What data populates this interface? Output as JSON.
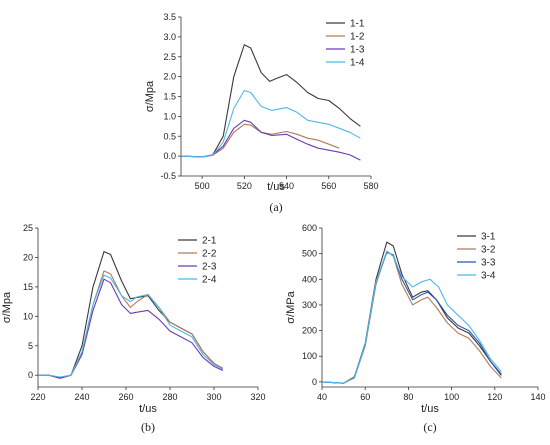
{
  "chart_data": [
    {
      "type": "line",
      "caption": "(a)",
      "xlabel": "t/us",
      "ylabel": "σ/Mpa",
      "xlim": [
        490,
        580
      ],
      "ylim": [
        -0.5,
        3.5
      ],
      "xticks": [
        500,
        520,
        540,
        560,
        580
      ],
      "yticks": [
        -0.5,
        0.0,
        0.5,
        1.0,
        1.5,
        2.0,
        2.5,
        3.0,
        3.5
      ],
      "ytick_decimals": 1,
      "legend_position": "top-right",
      "series": [
        {
          "name": "1-1",
          "color": "#3a3a3a",
          "points": [
            [
              490,
              0
            ],
            [
              500,
              -0.02
            ],
            [
              505,
              0.03
            ],
            [
              510,
              0.5
            ],
            [
              515,
              2.0
            ],
            [
              520,
              2.8
            ],
            [
              523,
              2.72
            ],
            [
              528,
              2.1
            ],
            [
              532,
              1.88
            ],
            [
              535,
              1.95
            ],
            [
              540,
              2.05
            ],
            [
              545,
              1.85
            ],
            [
              550,
              1.6
            ],
            [
              555,
              1.45
            ],
            [
              560,
              1.4
            ],
            [
              565,
              1.2
            ],
            [
              570,
              0.95
            ],
            [
              575,
              0.75
            ]
          ]
        },
        {
          "name": "1-2",
          "color": "#b07a5a",
          "points": [
            [
              490,
              0
            ],
            [
              500,
              -0.02
            ],
            [
              505,
              0.02
            ],
            [
              510,
              0.2
            ],
            [
              515,
              0.6
            ],
            [
              520,
              0.8
            ],
            [
              523,
              0.78
            ],
            [
              528,
              0.6
            ],
            [
              533,
              0.55
            ],
            [
              540,
              0.62
            ],
            [
              545,
              0.55
            ],
            [
              550,
              0.45
            ],
            [
              555,
              0.4
            ],
            [
              560,
              0.3
            ],
            [
              565,
              0.2
            ]
          ]
        },
        {
          "name": "1-3",
          "color": "#6a3cb5",
          "points": [
            [
              490,
              0
            ],
            [
              500,
              -0.02
            ],
            [
              505,
              0.03
            ],
            [
              510,
              0.25
            ],
            [
              515,
              0.7
            ],
            [
              520,
              0.9
            ],
            [
              523,
              0.85
            ],
            [
              528,
              0.6
            ],
            [
              533,
              0.52
            ],
            [
              540,
              0.55
            ],
            [
              545,
              0.42
            ],
            [
              550,
              0.3
            ],
            [
              555,
              0.2
            ],
            [
              560,
              0.15
            ],
            [
              565,
              0.1
            ],
            [
              570,
              0.03
            ],
            [
              575,
              -0.1
            ]
          ]
        },
        {
          "name": "1-4",
          "color": "#4db8e8",
          "points": [
            [
              490,
              0
            ],
            [
              500,
              -0.02
            ],
            [
              505,
              0.02
            ],
            [
              510,
              0.35
            ],
            [
              515,
              1.2
            ],
            [
              520,
              1.65
            ],
            [
              523,
              1.6
            ],
            [
              528,
              1.25
            ],
            [
              533,
              1.15
            ],
            [
              540,
              1.22
            ],
            [
              545,
              1.1
            ],
            [
              550,
              0.9
            ],
            [
              555,
              0.85
            ],
            [
              560,
              0.8
            ],
            [
              565,
              0.7
            ],
            [
              570,
              0.6
            ],
            [
              575,
              0.45
            ]
          ]
        }
      ]
    },
    {
      "type": "line",
      "caption": "(b)",
      "xlabel": "t/us",
      "ylabel": "σ/Mpa",
      "xlim": [
        220,
        320
      ],
      "ylim": [
        -2,
        25
      ],
      "xticks": [
        220,
        240,
        260,
        280,
        300,
        320
      ],
      "yticks": [
        0,
        5,
        10,
        15,
        20,
        25
      ],
      "ytick_decimals": 0,
      "legend_position": "top-right",
      "series": [
        {
          "name": "2-1",
          "color": "#3a3a3a",
          "points": [
            [
              220,
              0
            ],
            [
              225,
              0
            ],
            [
              230,
              -0.5
            ],
            [
              235,
              0
            ],
            [
              240,
              5
            ],
            [
              245,
              15
            ],
            [
              250,
              21
            ],
            [
              253,
              20.5
            ],
            [
              258,
              16
            ],
            [
              262,
              13
            ],
            [
              265,
              13.2
            ],
            [
              270,
              13.5
            ],
            [
              275,
              11
            ],
            [
              280,
              9
            ],
            [
              285,
              8
            ],
            [
              290,
              7
            ],
            [
              295,
              4
            ],
            [
              300,
              2
            ],
            [
              304,
              1
            ]
          ]
        },
        {
          "name": "2-2",
          "color": "#b07a5a",
          "points": [
            [
              220,
              0
            ],
            [
              225,
              0
            ],
            [
              230,
              -0.4
            ],
            [
              235,
              0
            ],
            [
              240,
              4
            ],
            [
              245,
              12
            ],
            [
              250,
              17.7
            ],
            [
              253,
              17.2
            ],
            [
              258,
              13.5
            ],
            [
              262,
              11.5
            ],
            [
              265,
              12.5
            ],
            [
              270,
              13.7
            ],
            [
              275,
              11.5
            ],
            [
              280,
              9
            ],
            [
              285,
              8
            ],
            [
              290,
              7
            ],
            [
              295,
              4
            ],
            [
              300,
              2
            ],
            [
              304,
              1.2
            ]
          ]
        },
        {
          "name": "2-3",
          "color": "#6a3cb5",
          "points": [
            [
              220,
              0
            ],
            [
              225,
              0
            ],
            [
              230,
              -0.5
            ],
            [
              235,
              0
            ],
            [
              240,
              3.5
            ],
            [
              245,
              11
            ],
            [
              250,
              16.3
            ],
            [
              253,
              15.7
            ],
            [
              258,
              12
            ],
            [
              262,
              10.5
            ],
            [
              265,
              10.7
            ],
            [
              270,
              11
            ],
            [
              275,
              9.5
            ],
            [
              280,
              7.5
            ],
            [
              285,
              6.5
            ],
            [
              290,
              5.5
            ],
            [
              295,
              3
            ],
            [
              300,
              1.5
            ],
            [
              304,
              0.8
            ]
          ]
        },
        {
          "name": "2-4",
          "color": "#4db8e8",
          "points": [
            [
              220,
              0
            ],
            [
              225,
              0
            ],
            [
              230,
              -0.3
            ],
            [
              235,
              0
            ],
            [
              240,
              4
            ],
            [
              245,
              12
            ],
            [
              250,
              17
            ],
            [
              253,
              16.5
            ],
            [
              258,
              13.5
            ],
            [
              262,
              12.5
            ],
            [
              265,
              13.3
            ],
            [
              270,
              13.7
            ],
            [
              275,
              11.5
            ],
            [
              280,
              8.5
            ],
            [
              285,
              7.5
            ],
            [
              290,
              6.5
            ],
            [
              295,
              3.5
            ],
            [
              300,
              1.8
            ],
            [
              304,
              1
            ]
          ]
        }
      ]
    },
    {
      "type": "line",
      "caption": "(c)",
      "xlabel": "t/us",
      "ylabel": "σ/MPa",
      "xlim": [
        40,
        140
      ],
      "ylim": [
        -20,
        600
      ],
      "xticks": [
        40,
        60,
        80,
        100,
        120,
        140
      ],
      "yticks": [
        0,
        100,
        200,
        300,
        400,
        500,
        600
      ],
      "ytick_decimals": 0,
      "legend_position": "top-right",
      "series": [
        {
          "name": "3-1",
          "color": "#3a3a3a",
          "points": [
            [
              40,
              0
            ],
            [
              50,
              -5
            ],
            [
              55,
              20
            ],
            [
              60,
              150
            ],
            [
              65,
              400
            ],
            [
              70,
              545
            ],
            [
              73,
              530
            ],
            [
              77,
              420
            ],
            [
              82,
              330
            ],
            [
              86,
              350
            ],
            [
              89,
              355
            ],
            [
              93,
              320
            ],
            [
              98,
              250
            ],
            [
              103,
              210
            ],
            [
              108,
              190
            ],
            [
              113,
              140
            ],
            [
              118,
              80
            ],
            [
              123,
              30
            ]
          ]
        },
        {
          "name": "3-2",
          "color": "#b07a5a",
          "points": [
            [
              40,
              0
            ],
            [
              50,
              -5
            ],
            [
              55,
              15
            ],
            [
              60,
              140
            ],
            [
              65,
              380
            ],
            [
              70,
              510
            ],
            [
              73,
              490
            ],
            [
              77,
              380
            ],
            [
              82,
              300
            ],
            [
              86,
              320
            ],
            [
              89,
              330
            ],
            [
              93,
              290
            ],
            [
              98,
              230
            ],
            [
              103,
              190
            ],
            [
              108,
              170
            ],
            [
              113,
              120
            ],
            [
              118,
              60
            ],
            [
              123,
              15
            ]
          ]
        },
        {
          "name": "3-3",
          "color": "#2b55b5",
          "points": [
            [
              40,
              0
            ],
            [
              50,
              -5
            ],
            [
              55,
              18
            ],
            [
              60,
              145
            ],
            [
              65,
              390
            ],
            [
              70,
              505
            ],
            [
              73,
              495
            ],
            [
              77,
              400
            ],
            [
              82,
              320
            ],
            [
              86,
              340
            ],
            [
              89,
              350
            ],
            [
              93,
              320
            ],
            [
              98,
              260
            ],
            [
              103,
              220
            ],
            [
              108,
              200
            ],
            [
              113,
              150
            ],
            [
              118,
              80
            ],
            [
              123,
              25
            ]
          ]
        },
        {
          "name": "3-4",
          "color": "#4db8e8",
          "points": [
            [
              40,
              0
            ],
            [
              50,
              -5
            ],
            [
              55,
              18
            ],
            [
              60,
              145
            ],
            [
              65,
              390
            ],
            [
              70,
              510
            ],
            [
              73,
              490
            ],
            [
              77,
              410
            ],
            [
              82,
              370
            ],
            [
              86,
              390
            ],
            [
              90,
              400
            ],
            [
              94,
              370
            ],
            [
              98,
              300
            ],
            [
              103,
              260
            ],
            [
              108,
              220
            ],
            [
              113,
              160
            ],
            [
              118,
              90
            ],
            [
              123,
              40
            ]
          ]
        }
      ]
    }
  ]
}
